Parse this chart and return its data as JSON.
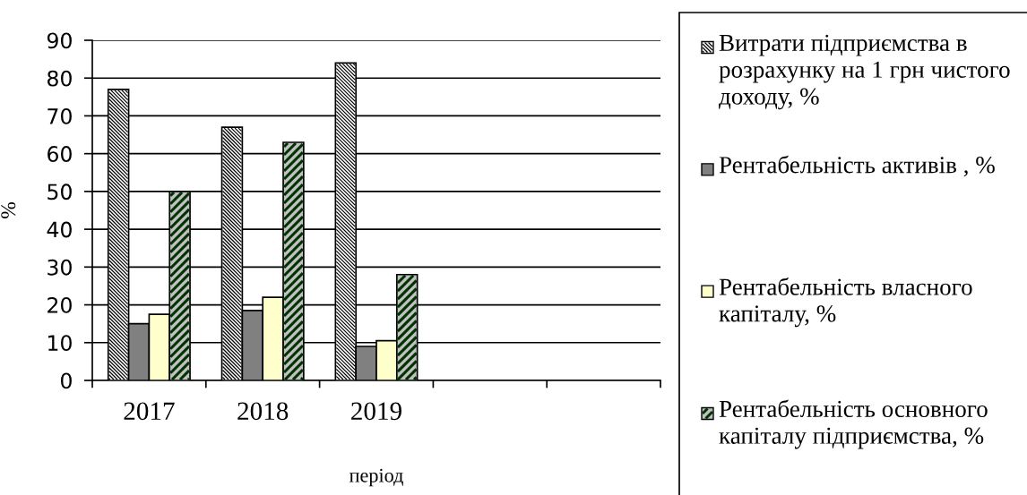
{
  "chart_data": {
    "type": "bar",
    "categories": [
      "2017",
      "2018",
      "2019",
      null,
      null
    ],
    "series": [
      {
        "name": "Витрати підприємства в розрахунку на 1 грн чистого доходу, %",
        "color": "#ffffff",
        "values": [
          77,
          67,
          84,
          null,
          null
        ]
      },
      {
        "name": "Рентабельність активів , %",
        "color": "#808080",
        "values": [
          15,
          18.5,
          9,
          null,
          null
        ]
      },
      {
        "name": "Рентабельність власного капіталу, %",
        "color": "#ffffcc",
        "values": [
          17.5,
          22,
          10.5,
          null,
          null
        ]
      },
      {
        "name": "Рентабельність основного капіталу підприємства, %",
        "color": "#c0c0c0",
        "values": [
          50,
          63,
          28,
          null,
          null
        ]
      }
    ],
    "xlabel": "період",
    "ylabel": "%",
    "ylim": [
      0,
      90
    ],
    "yticks": [
      0,
      10,
      20,
      30,
      40,
      50,
      60,
      70,
      80,
      90
    ],
    "grid": "y",
    "legend": "right"
  }
}
